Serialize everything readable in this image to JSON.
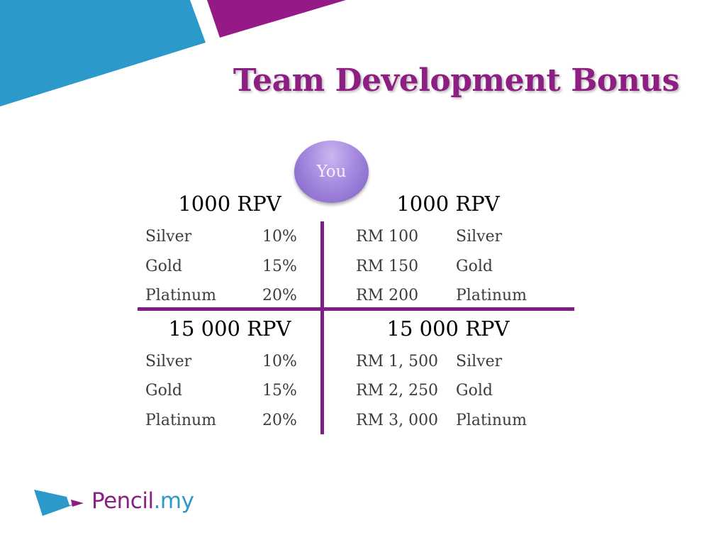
{
  "slide": {
    "title": "Team Development Bonus",
    "center_node": "You"
  },
  "quadrants": {
    "top_left": {
      "heading": "1000 RPV",
      "rows": [
        {
          "rank": "Silver",
          "value": "10%"
        },
        {
          "rank": "Gold",
          "value": "15%"
        },
        {
          "rank": "Platinum",
          "value": "20%"
        }
      ]
    },
    "top_right": {
      "heading": "1000 RPV",
      "rows": [
        {
          "value": "RM 100",
          "rank": "Silver"
        },
        {
          "value": "RM 150",
          "rank": "Gold"
        },
        {
          "value": "RM 200",
          "rank": "Platinum"
        }
      ]
    },
    "bottom_left": {
      "heading": "15 000 RPV",
      "rows": [
        {
          "rank": "Silver",
          "value": "10%"
        },
        {
          "rank": "Gold",
          "value": "15%"
        },
        {
          "rank": "Platinum",
          "value": "20%"
        }
      ]
    },
    "bottom_right": {
      "heading": "15 000 RPV",
      "rows": [
        {
          "value": "RM 1, 500",
          "rank": "Silver"
        },
        {
          "value": "RM 2, 250",
          "rank": "Gold"
        },
        {
          "value": "RM 3, 000",
          "rank": "Platinum"
        }
      ]
    }
  },
  "logo": {
    "brand_main": "Pencil",
    "brand_suffix": ".my"
  },
  "colors": {
    "primary_purple": "#8e1f82",
    "accent_blue": "#2b9acb",
    "divider_purple": "#7e1f86"
  }
}
